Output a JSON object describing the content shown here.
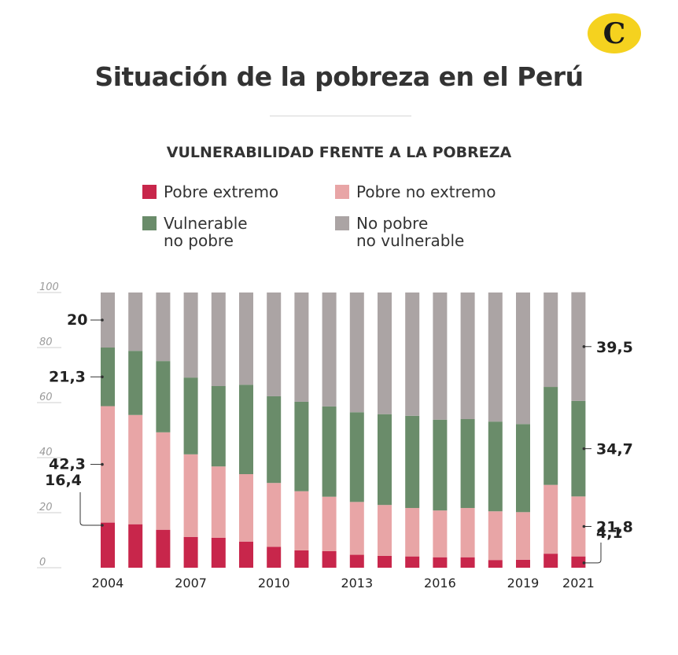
{
  "title": "Situación de la pobreza en el Perú",
  "logo": {
    "letter": "C",
    "color": "#f5d21f"
  },
  "subtitle": "VULNERABILIDAD FRENTE A LA POBREZA",
  "legend": [
    {
      "label": "Pobre extremo",
      "color": "#c8264b"
    },
    {
      "label": "Pobre no extremo",
      "color": "#e8a5a6"
    },
    {
      "label": "Vulnerable\nno pobre",
      "color": "#6a8c6a"
    },
    {
      "label": "No pobre\nno vulnerable",
      "color": "#aba4a4"
    }
  ],
  "chart_data": {
    "type": "bar",
    "stacked": true,
    "ylim": [
      0,
      100
    ],
    "yticks": [
      "0",
      "20",
      "40",
      "60",
      "80",
      "100"
    ],
    "x": [
      "2004",
      "2005",
      "2006",
      "2007",
      "2008",
      "2009",
      "2010",
      "2011",
      "2012",
      "2013",
      "2014",
      "2015",
      "2016",
      "2017",
      "2018",
      "2019",
      "2020",
      "2021"
    ],
    "x_labels": [
      "2004",
      "",
      "",
      "2007",
      "",
      "",
      "2010",
      "",
      "",
      "2013",
      "",
      "",
      "2016",
      "",
      "",
      "2019",
      "",
      "2021"
    ],
    "series": [
      {
        "name": "Pobre extremo",
        "color": "#c8264b",
        "values": [
          16.4,
          15.8,
          13.8,
          11.2,
          10.9,
          9.5,
          7.6,
          6.3,
          6.0,
          4.7,
          4.3,
          4.1,
          3.8,
          3.8,
          2.8,
          2.9,
          5.1,
          4.1
        ]
      },
      {
        "name": "Pobre no extremo",
        "color": "#e8a5a6",
        "values": [
          42.3,
          39.7,
          35.4,
          30.0,
          25.9,
          24.5,
          23.2,
          21.5,
          19.8,
          19.2,
          18.5,
          17.6,
          17.0,
          17.9,
          17.7,
          17.3,
          25.0,
          21.8
        ]
      },
      {
        "name": "Vulnerable\nno pobre",
        "color": "#6a8c6a",
        "values": [
          21.3,
          23.3,
          25.9,
          27.9,
          29.2,
          32.5,
          31.5,
          32.5,
          32.8,
          32.6,
          33.0,
          33.5,
          33.0,
          32.3,
          32.6,
          32.0,
          35.6,
          34.7
        ]
      },
      {
        "name": "No pobre\nno vulnerable",
        "color": "#aba4a4",
        "values": [
          20.0,
          21.2,
          24.9,
          30.9,
          34.0,
          33.5,
          37.7,
          39.7,
          41.4,
          43.5,
          44.2,
          44.8,
          46.2,
          46.0,
          46.9,
          47.8,
          34.3,
          39.5
        ]
      }
    ],
    "annotations_left": [
      "20",
      "21,3",
      "42,3",
      "16,4"
    ],
    "annotations_right": [
      "39,5",
      "34,7",
      "21,8",
      "4,1"
    ]
  }
}
